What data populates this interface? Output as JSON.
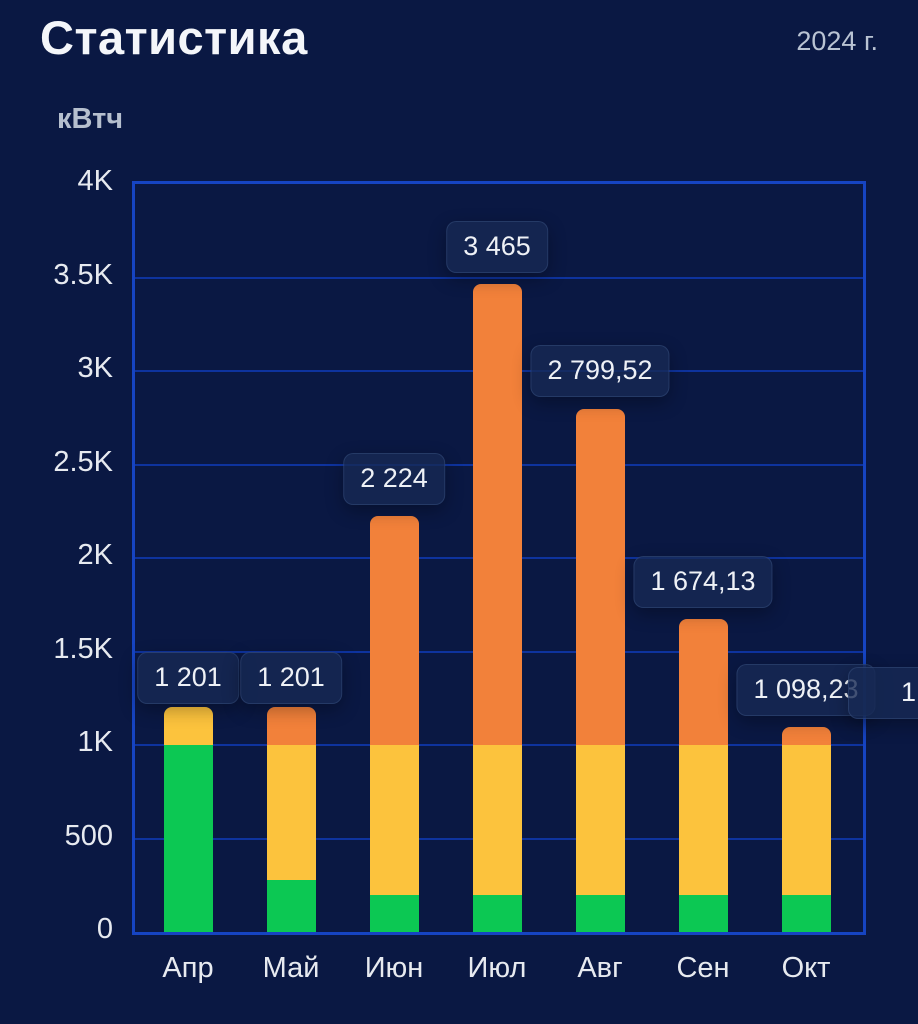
{
  "header": {
    "title": "Статистика",
    "year": "2024 г."
  },
  "chart_data": {
    "type": "bar",
    "stacked": true,
    "unit_label": "кВтч",
    "categories": [
      "Апр",
      "Май",
      "Июн",
      "Июл",
      "Авг",
      "Сен",
      "Окт"
    ],
    "totals": [
      1201,
      1201,
      2224,
      3465,
      2799.52,
      1674.13,
      1098.23
    ],
    "totals_display": [
      "1 201",
      "1 201",
      "2 224",
      "3 465",
      "2 799,52",
      "1 674,13",
      "1 098,23"
    ],
    "series": [
      {
        "name": "green-tier",
        "color": "#0cc853",
        "values": [
          1000,
          280,
          200,
          200,
          200,
          200,
          200
        ]
      },
      {
        "name": "yellow-tier",
        "color": "#fcc33d",
        "values": [
          201,
          720,
          800,
          800,
          800,
          800,
          800
        ]
      },
      {
        "name": "orange-tier",
        "color": "#f2813a",
        "values": [
          0,
          201,
          1224,
          2465,
          1799.52,
          674.13,
          98.23
        ]
      }
    ],
    "y_ticks": [
      "4K",
      "3.5K",
      "3K",
      "2.5K",
      "2K",
      "1.5K",
      "1K",
      "500",
      "0"
    ],
    "ylim": [
      0,
      4000
    ],
    "grid": true,
    "legend": null,
    "clipped_next_label": "1"
  },
  "colors": {
    "background": "#0a1843",
    "plot_border": "#1644c2",
    "gridline": "#0e339e",
    "green": "#0cc853",
    "yellow": "#fcc33d",
    "orange": "#f2813a",
    "badge_background": "rgba(22,41,84,0.80)",
    "text_primary": "#f4f6fa",
    "text_secondary": "#b9c3d3"
  }
}
